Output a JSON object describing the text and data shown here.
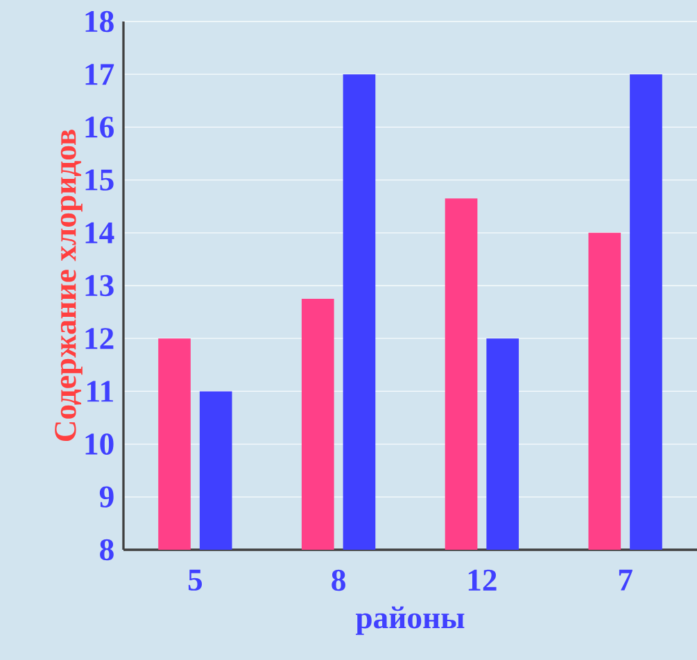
{
  "chart_data": {
    "type": "bar",
    "xlabel": "районы",
    "ylabel": "Содержание хлоридов",
    "categories": [
      "5",
      "8",
      "12",
      "7"
    ],
    "series": [
      {
        "color": "#ff4088",
        "values": [
          12,
          12.75,
          14.65,
          14
        ]
      },
      {
        "color": "#4040ff",
        "values": [
          11,
          17,
          12,
          17
        ]
      }
    ],
    "ylim": [
      8,
      18
    ],
    "yticks": [
      8,
      9,
      10,
      11,
      12,
      13,
      14,
      15,
      16,
      17,
      18
    ],
    "grid": "y"
  }
}
